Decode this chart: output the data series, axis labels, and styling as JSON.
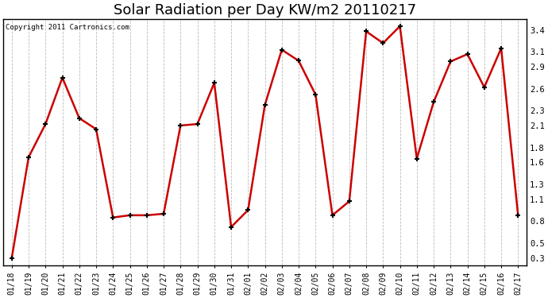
{
  "title": "Solar Radiation per Day KW/m2 20110217",
  "copyright": "Copyright 2011 Cartronics.com",
  "x_labels": [
    "01/18",
    "01/19",
    "01/20",
    "01/21",
    "01/22",
    "01/23",
    "01/24",
    "01/25",
    "01/26",
    "01/27",
    "01/28",
    "01/29",
    "01/30",
    "01/31",
    "02/01",
    "02/02",
    "02/03",
    "02/04",
    "02/05",
    "02/06",
    "02/07",
    "02/08",
    "02/09",
    "02/10",
    "02/11",
    "02/12",
    "02/13",
    "02/14",
    "02/15",
    "02/16",
    "02/17"
  ],
  "y_values": [
    0.3,
    1.67,
    2.12,
    2.75,
    2.2,
    2.05,
    0.85,
    0.88,
    0.88,
    0.9,
    2.1,
    2.12,
    2.68,
    0.72,
    0.95,
    2.38,
    3.13,
    2.98,
    2.52,
    0.88,
    1.07,
    3.38,
    3.22,
    3.45,
    1.65,
    2.42,
    2.97,
    3.07,
    2.62,
    3.15,
    0.88
  ],
  "line_color": "#cc0000",
  "marker": "+",
  "marker_size": 5,
  "ylim": [
    0.2,
    3.55
  ],
  "yticks": [
    0.3,
    0.5,
    0.8,
    1.1,
    1.3,
    1.6,
    1.8,
    2.1,
    2.3,
    2.6,
    2.9,
    3.1,
    3.4
  ],
  "grid_color": "#bbbbbb",
  "bg_color": "#ffffff",
  "title_fontsize": 13,
  "label_fontsize": 7,
  "copyright_fontsize": 6.5
}
